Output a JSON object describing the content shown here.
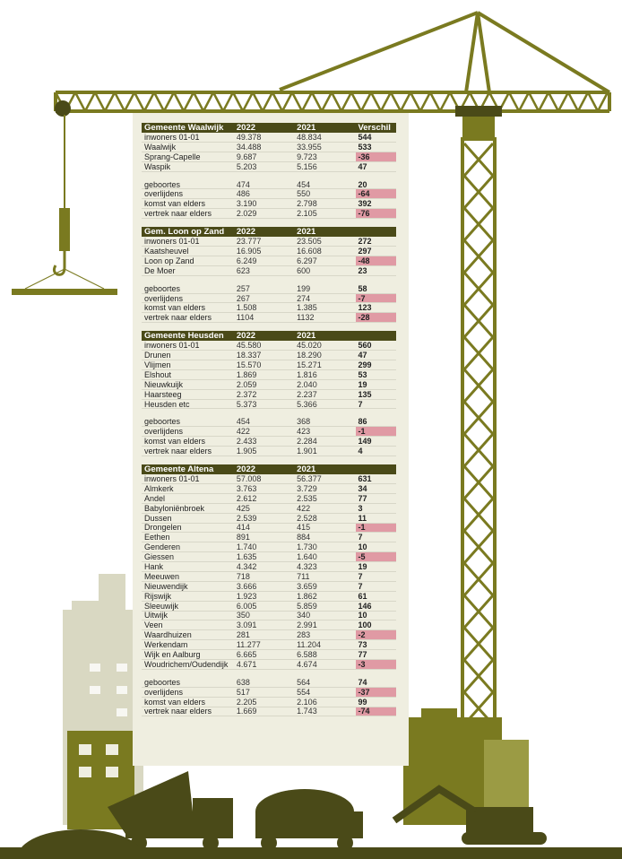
{
  "colors": {
    "olive": "#7a7a20",
    "dark_olive": "#4a4a18",
    "panel": "#efeee0",
    "negative": "#e09aa4"
  },
  "sections": [
    {
      "title": "Gemeente Waalwijk",
      "col1": "2022",
      "col2": "2021",
      "col3": "Verschil",
      "rows": [
        {
          "label": "inwoners 01-01",
          "v2022": "49.378",
          "v2021": "48.834",
          "diff": "544"
        },
        {
          "label": "Waalwijk",
          "v2022": "34.488",
          "v2021": "33.955",
          "diff": "533"
        },
        {
          "label": "Sprang-Capelle",
          "v2022": "9.687",
          "v2021": "9.723",
          "diff": "-36",
          "neg": true
        },
        {
          "label": "Waspik",
          "v2022": "5.203",
          "v2021": "5.156",
          "diff": "47"
        }
      ],
      "rows2": [
        {
          "label": "geboortes",
          "v2022": "474",
          "v2021": "454",
          "diff": "20"
        },
        {
          "label": "overlijdens",
          "v2022": "486",
          "v2021": "550",
          "diff": "-64",
          "neg": true
        },
        {
          "label": "komst van elders",
          "v2022": "3.190",
          "v2021": "2.798",
          "diff": "392"
        },
        {
          "label": "vertrek naar elders",
          "v2022": "2.029",
          "v2021": "2.105",
          "diff": "-76",
          "neg": true
        }
      ]
    },
    {
      "title": "Gem. Loon op Zand",
      "col1": "2022",
      "col2": "2021",
      "col3": "",
      "rows": [
        {
          "label": "inwoners 01-01",
          "v2022": "23.777",
          "v2021": "23.505",
          "diff": "272"
        },
        {
          "label": "Kaatsheuvel",
          "v2022": "16.905",
          "v2021": "16.608",
          "diff": "297"
        },
        {
          "label": "Loon op Zand",
          "v2022": "6.249",
          "v2021": "6.297",
          "diff": "-48",
          "neg": true
        },
        {
          "label": "De Moer",
          "v2022": "623",
          "v2021": "600",
          "diff": "23"
        }
      ],
      "rows2": [
        {
          "label": "geboortes",
          "v2022": "257",
          "v2021": "199",
          "diff": "58"
        },
        {
          "label": "overlijdens",
          "v2022": "267",
          "v2021": "274",
          "diff": "-7",
          "neg": true
        },
        {
          "label": "komst van elders",
          "v2022": "1.508",
          "v2021": "1.385",
          "diff": "123"
        },
        {
          "label": "vertrek naar elders",
          "v2022": "1104",
          "v2021": "1132",
          "diff": "-28",
          "neg": true
        }
      ]
    },
    {
      "title": "Gemeente Heusden",
      "col1": "2022",
      "col2": "2021",
      "col3": "",
      "rows": [
        {
          "label": "inwoners 01-01",
          "v2022": "45.580",
          "v2021": "45.020",
          "diff": "560"
        },
        {
          "label": "Drunen",
          "v2022": "18.337",
          "v2021": "18.290",
          "diff": "47"
        },
        {
          "label": "Vlijmen",
          "v2022": "15.570",
          "v2021": "15.271",
          "diff": "299"
        },
        {
          "label": "Elshout",
          "v2022": "1.869",
          "v2021": "1.816",
          "diff": "53"
        },
        {
          "label": "Nieuwkuijk",
          "v2022": "2.059",
          "v2021": "2.040",
          "diff": "19"
        },
        {
          "label": "Haarsteeg",
          "v2022": "2.372",
          "v2021": "2.237",
          "diff": "135"
        },
        {
          "label": "Heusden etc",
          "v2022": "5.373",
          "v2021": "5.366",
          "diff": "7"
        }
      ],
      "rows2": [
        {
          "label": "geboortes",
          "v2022": "454",
          "v2021": "368",
          "diff": "86"
        },
        {
          "label": "overlijdens",
          "v2022": "422",
          "v2021": "423",
          "diff": "-1",
          "neg": true
        },
        {
          "label": "komst van elders",
          "v2022": "2.433",
          "v2021": "2.284",
          "diff": "149"
        },
        {
          "label": "vertrek naar elders",
          "v2022": "1.905",
          "v2021": "1.901",
          "diff": "4"
        }
      ]
    },
    {
      "title": "Gemeente Altena",
      "col1": "2022",
      "col2": "2021",
      "col3": "",
      "rows": [
        {
          "label": "inwoners 01-01",
          "v2022": "57.008",
          "v2021": "56.377",
          "diff": "631"
        },
        {
          "label": "Almkerk",
          "v2022": "3.763",
          "v2021": "3.729",
          "diff": "34"
        },
        {
          "label": "Andel",
          "v2022": "2.612",
          "v2021": "2.535",
          "diff": "77"
        },
        {
          "label": "Babyloniënbroek",
          "v2022": "425",
          "v2021": "422",
          "diff": "3"
        },
        {
          "label": "Dussen",
          "v2022": "2.539",
          "v2021": "2.528",
          "diff": "11"
        },
        {
          "label": "Drongelen",
          "v2022": "414",
          "v2021": "415",
          "diff": "-1",
          "neg": true
        },
        {
          "label": "Eethen",
          "v2022": "891",
          "v2021": "884",
          "diff": "7"
        },
        {
          "label": "Genderen",
          "v2022": "1.740",
          "v2021": "1.730",
          "diff": "10"
        },
        {
          "label": "Giessen",
          "v2022": "1.635",
          "v2021": "1.640",
          "diff": "-5",
          "neg": true
        },
        {
          "label": "Hank",
          "v2022": "4.342",
          "v2021": "4.323",
          "diff": "19"
        },
        {
          "label": "Meeuwen",
          "v2022": "718",
          "v2021": "711",
          "diff": "7"
        },
        {
          "label": "Nieuwendijk",
          "v2022": "3.666",
          "v2021": "3.659",
          "diff": "7"
        },
        {
          "label": "Rijswijk",
          "v2022": "1.923",
          "v2021": "1.862",
          "diff": "61"
        },
        {
          "label": "Sleeuwijk",
          "v2022": "6.005",
          "v2021": "5.859",
          "diff": "146"
        },
        {
          "label": "Uitwijk",
          "v2022": "350",
          "v2021": "340",
          "diff": "10"
        },
        {
          "label": "Veen",
          "v2022": "3.091",
          "v2021": "2.991",
          "diff": "100"
        },
        {
          "label": "Waardhuizen",
          "v2022": "281",
          "v2021": "283",
          "diff": "-2",
          "neg": true
        },
        {
          "label": "Werkendam",
          "v2022": "11.277",
          "v2021": "11.204",
          "diff": "73"
        },
        {
          "label": "Wijk en Aalburg",
          "v2022": "6.665",
          "v2021": "6.588",
          "diff": "77"
        },
        {
          "label": "Woudrichem/Oudendijk",
          "v2022": "4.671",
          "v2021": "4.674",
          "diff": "-3",
          "neg": true
        }
      ],
      "rows2": [
        {
          "label": "geboortes",
          "v2022": "638",
          "v2021": "564",
          "diff": "74"
        },
        {
          "label": "overlijdens",
          "v2022": "517",
          "v2021": "554",
          "diff": "-37",
          "neg": true
        },
        {
          "label": "komst van elders",
          "v2022": "2.205",
          "v2021": "2.106",
          "diff": "99"
        },
        {
          "label": "vertrek naar elders",
          "v2022": "1.669",
          "v2021": "1.743",
          "diff": "-74",
          "neg": true
        }
      ]
    }
  ]
}
